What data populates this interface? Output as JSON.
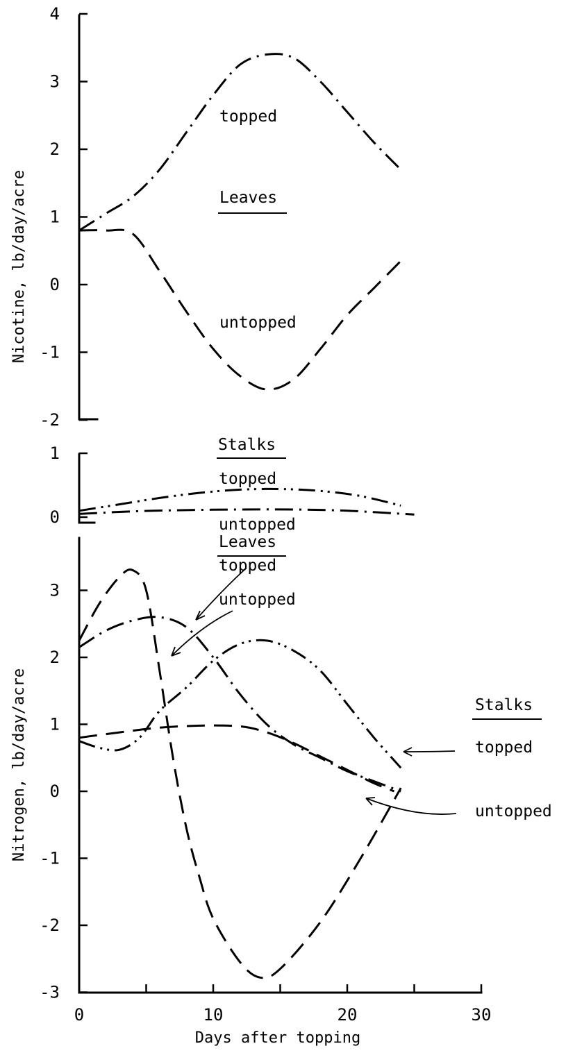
{
  "chart_data": [
    {
      "panel": "nicotine-leaves",
      "type": "line",
      "ylabel": "Nicotine, lb/day/acre",
      "ylim": [
        -2,
        4
      ],
      "yticks": [
        "4",
        "3",
        "2",
        "1",
        "0",
        "-1",
        "-2"
      ],
      "title": "Leaves",
      "series": [
        {
          "name": "topped",
          "style": "dashdot",
          "x": [
            0,
            2,
            4,
            6,
            8,
            10,
            12,
            14,
            16,
            18,
            20,
            22,
            24
          ],
          "y": [
            0.8,
            1.05,
            1.3,
            1.7,
            2.25,
            2.8,
            3.25,
            3.4,
            3.35,
            3.0,
            2.55,
            2.1,
            1.7
          ]
        },
        {
          "name": "untopped",
          "style": "dash",
          "x": [
            0,
            2,
            4,
            6,
            8,
            10,
            12,
            14,
            16,
            18,
            20,
            22,
            24
          ],
          "y": [
            0.8,
            0.8,
            0.75,
            0.2,
            -0.4,
            -0.95,
            -1.35,
            -1.55,
            -1.4,
            -0.95,
            -0.45,
            -0.05,
            0.35
          ]
        }
      ]
    },
    {
      "panel": "nicotine-stalks",
      "type": "line",
      "ylim": [
        0,
        1
      ],
      "yticks": [
        "1",
        "0"
      ],
      "title": "Stalks",
      "series": [
        {
          "name": "topped",
          "style": "dashdotdot",
          "x": [
            0,
            3,
            6,
            9,
            12,
            15,
            18,
            21,
            24
          ],
          "y": [
            0.1,
            0.2,
            0.3,
            0.38,
            0.43,
            0.44,
            0.41,
            0.33,
            0.18
          ]
        },
        {
          "name": "untopped",
          "style": "dashdot",
          "x": [
            0,
            4,
            8,
            12,
            16,
            20,
            25
          ],
          "y": [
            0.05,
            0.09,
            0.11,
            0.12,
            0.12,
            0.1,
            0.04
          ]
        }
      ]
    },
    {
      "panel": "nitrogen",
      "type": "line",
      "ylabel": "Nitrogen, lb/day/acre",
      "xlabel": "Days after topping",
      "xlim": [
        0,
        30
      ],
      "ylim": [
        -3,
        3.5
      ],
      "xticks": [
        "0",
        "10",
        "20",
        "30"
      ],
      "yticks": [
        "3",
        "2",
        "1",
        "0",
        "-1",
        "-2",
        "-3"
      ],
      "titles": [
        "Leaves",
        "Stalks"
      ],
      "series": [
        {
          "name": "Leaves topped",
          "style": "dashdot",
          "x": [
            0,
            2,
            4,
            6,
            8,
            10,
            12,
            14,
            16,
            18,
            20,
            22,
            24
          ],
          "y": [
            2.15,
            2.4,
            2.55,
            2.6,
            2.45,
            2.0,
            1.45,
            1.0,
            0.7,
            0.5,
            0.3,
            0.15,
            0.0
          ]
        },
        {
          "name": "Leaves untopped",
          "style": "dash",
          "x": [
            0,
            1.5,
            3,
            4,
            5,
            6,
            7,
            8,
            9,
            10,
            12,
            13.5,
            15,
            18,
            21,
            24
          ],
          "y": [
            2.25,
            2.8,
            3.2,
            3.3,
            3.0,
            1.8,
            0.5,
            -0.55,
            -1.3,
            -1.9,
            -2.55,
            -2.78,
            -2.65,
            -1.95,
            -1.0,
            0.05
          ]
        },
        {
          "name": "Stalks topped",
          "style": "dashdotdot",
          "x": [
            0,
            1.5,
            3,
            4.5,
            6,
            8,
            10,
            12,
            14,
            16,
            18,
            20,
            22,
            24
          ],
          "y": [
            0.75,
            0.65,
            0.62,
            0.8,
            1.2,
            1.55,
            1.95,
            2.2,
            2.25,
            2.1,
            1.8,
            1.3,
            0.8,
            0.35
          ]
        },
        {
          "name": "Stalks untopped",
          "style": "dash",
          "x": [
            0,
            3,
            6,
            9,
            12,
            14,
            16,
            18,
            20,
            22,
            23.5
          ],
          "y": [
            0.8,
            0.88,
            0.95,
            0.98,
            0.97,
            0.88,
            0.72,
            0.52,
            0.32,
            0.12,
            0.0
          ]
        }
      ]
    }
  ],
  "labels": {
    "nic_ylabel": "Nicotine, lb/day/acre",
    "nit_ylabel": "Nitrogen, lb/day/acre",
    "xlabel": "Days after topping",
    "leaves": "Leaves",
    "stalks": "Stalks",
    "topped": "topped",
    "untopped": "untopped"
  }
}
